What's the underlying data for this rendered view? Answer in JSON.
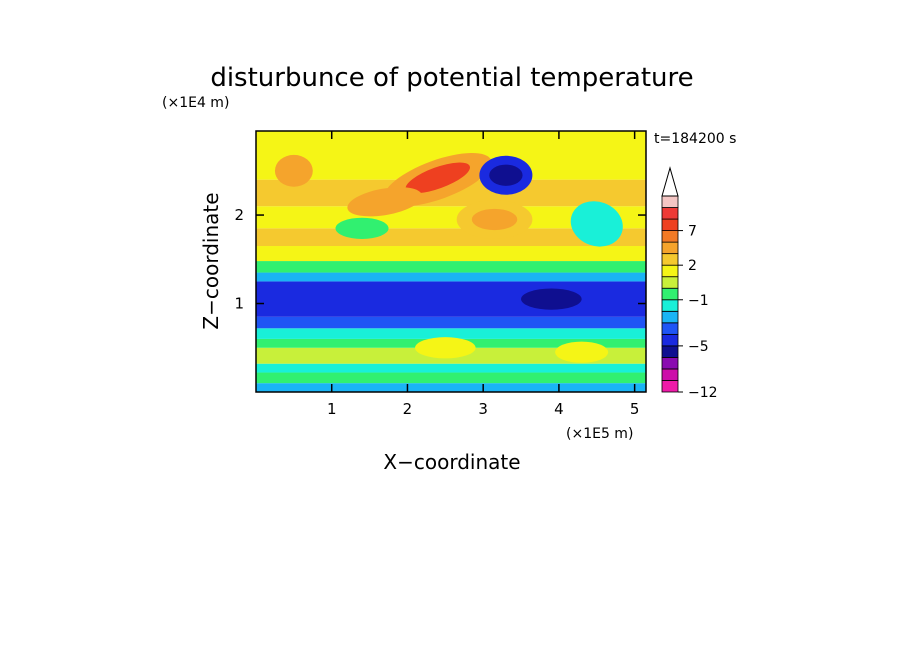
{
  "chart_data": {
    "type": "heatmap",
    "title": "disturbunce of potential temperature",
    "xlabel": "X−coordinate",
    "ylabel": "Z−coordinate",
    "x_unit": "(×1E5 m)",
    "y_unit": "(×1E4 m)",
    "time_label": "t=184200 s",
    "xlim": [
      0,
      5.15
    ],
    "ylim": [
      0,
      2.95
    ],
    "x_ticks": [
      "1",
      "2",
      "3",
      "4",
      "5"
    ],
    "y_ticks": [
      "1",
      "2"
    ],
    "x_tick_values": [
      1,
      2,
      3,
      4,
      5
    ],
    "y_tick_values": [
      1,
      2
    ],
    "colorbar": {
      "levels": [
        -12,
        -10,
        -8,
        -6,
        -5,
        -4,
        -3,
        -2,
        -1,
        0,
        1,
        2,
        3,
        5,
        7,
        8,
        9,
        11
      ],
      "tick_labels": [
        "−12",
        "−5",
        "−1",
        "2",
        "7"
      ],
      "tick_values": [
        -12,
        -5,
        -1,
        2,
        7
      ],
      "colors": [
        "#ee1ba8",
        "#cc0ea9",
        "#8a0bb0",
        "#0f0f90",
        "#1a2ae0",
        "#1f55f5",
        "#1ab4f5",
        "#19f0d8",
        "#31f070",
        "#c8f03a",
        "#f5f516",
        "#f5c92f",
        "#f5a42c",
        "#f27a26",
        "#ee4020",
        "#ee3a36",
        "#f4c6c4"
      ],
      "extend": "max"
    },
    "zone_rows": [
      [
        0.0,
        0.1,
        "#1ab4f5"
      ],
      [
        0.1,
        0.22,
        "#31f070"
      ],
      [
        0.22,
        0.32,
        "#19f0d8"
      ],
      [
        0.32,
        0.5,
        "#c8f03a"
      ],
      [
        0.5,
        0.6,
        "#31f070"
      ],
      [
        0.6,
        0.72,
        "#19f0d8"
      ],
      [
        0.72,
        0.85,
        "#1f55f5"
      ],
      [
        0.85,
        1.25,
        "#1a2ae0"
      ],
      [
        1.25,
        1.35,
        "#1ab4f5"
      ],
      [
        1.35,
        1.48,
        "#31f070"
      ],
      [
        1.48,
        1.65,
        "#f5f516"
      ],
      [
        1.65,
        1.85,
        "#f5c92f"
      ],
      [
        1.85,
        2.1,
        "#f5f516"
      ],
      [
        2.1,
        2.4,
        "#f5c92f"
      ],
      [
        2.4,
        2.95,
        "#f5f516"
      ]
    ],
    "blobs": [
      [
        2.4,
        2.4,
        0.75,
        0.22,
        -20,
        "#f5a42c"
      ],
      [
        2.4,
        2.42,
        0.45,
        0.12,
        -20,
        "#ee4020"
      ],
      [
        1.7,
        2.15,
        0.5,
        0.15,
        -10,
        "#f5a42c"
      ],
      [
        3.3,
        2.45,
        0.35,
        0.22,
        0,
        "#1a2ae0"
      ],
      [
        3.3,
        2.45,
        0.22,
        0.12,
        0,
        "#0f0f90"
      ],
      [
        3.15,
        1.95,
        0.5,
        0.22,
        0,
        "#f5c92f"
      ],
      [
        3.15,
        1.95,
        0.3,
        0.12,
        0,
        "#f5a42c"
      ],
      [
        1.4,
        1.85,
        0.35,
        0.12,
        0,
        "#31f070"
      ],
      [
        4.5,
        1.9,
        0.35,
        0.25,
        20,
        "#19f0d8"
      ],
      [
        0.5,
        2.5,
        0.25,
        0.18,
        0,
        "#f5a42c"
      ],
      [
        2.5,
        0.5,
        0.4,
        0.12,
        0,
        "#f5f516"
      ],
      [
        4.3,
        0.45,
        0.35,
        0.12,
        0,
        "#f5f516"
      ],
      [
        3.9,
        1.05,
        0.4,
        0.12,
        0,
        "#0f0f90"
      ]
    ]
  }
}
